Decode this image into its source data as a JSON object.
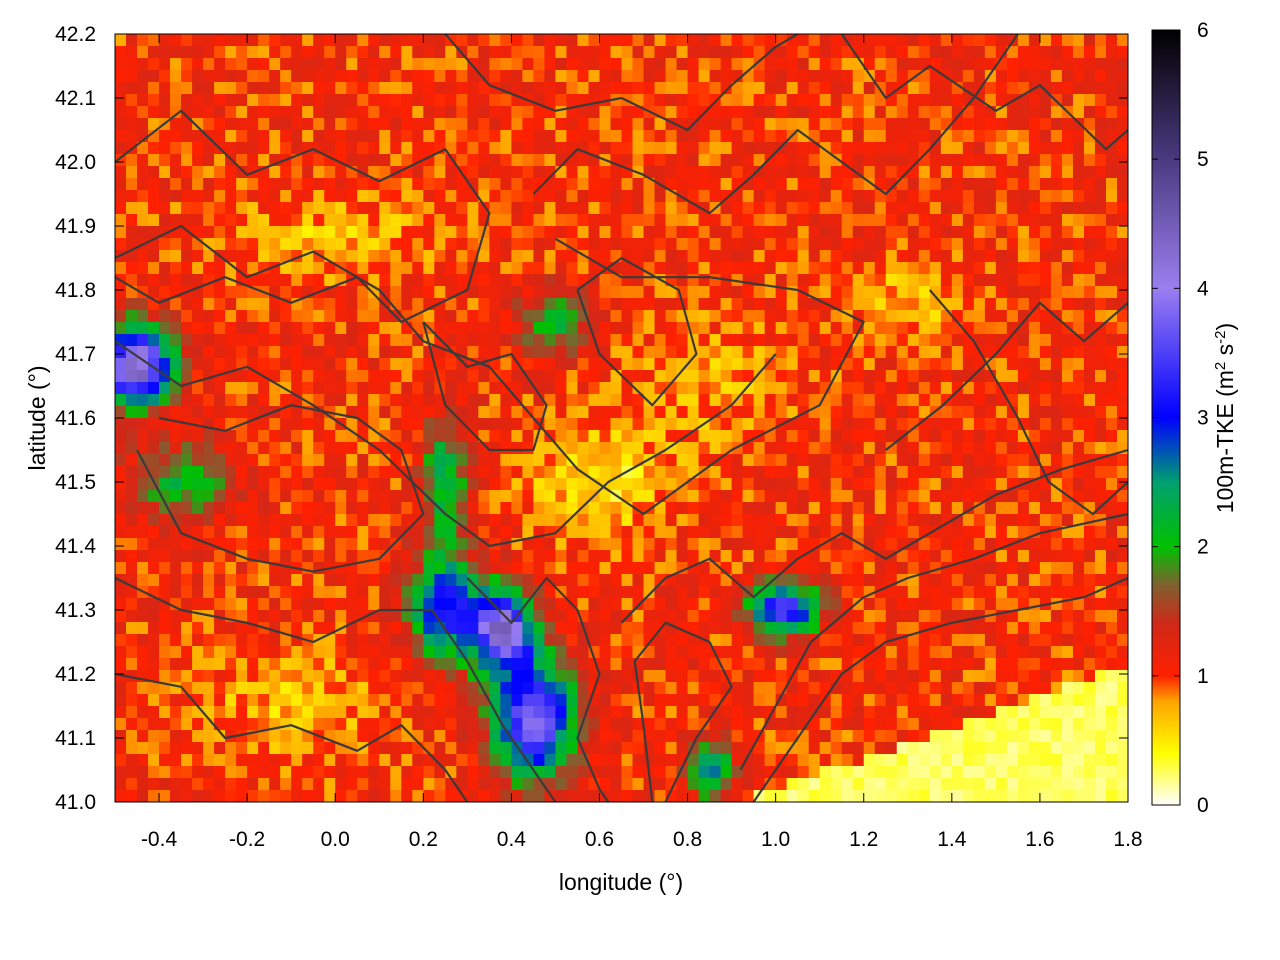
{
  "chart_data": {
    "type": "heatmap",
    "title": "",
    "xlabel": "longitude (°)",
    "ylabel": "latitude (°)",
    "xlim": [
      -0.5,
      1.8
    ],
    "ylim": [
      41.0,
      42.2
    ],
    "x_ticks": [
      "-0.4",
      "-0.2",
      "0.0",
      "0.2",
      "0.4",
      "0.6",
      "0.8",
      "1.0",
      "1.2",
      "1.4",
      "1.6",
      "1.8"
    ],
    "x_tick_values": [
      -0.4,
      -0.2,
      0.0,
      0.2,
      0.4,
      0.6,
      0.8,
      1.0,
      1.2,
      1.4,
      1.6,
      1.8
    ],
    "y_ticks": [
      "41.0",
      "41.1",
      "41.2",
      "41.3",
      "41.4",
      "41.5",
      "41.6",
      "41.7",
      "41.8",
      "41.9",
      "42.0",
      "42.1",
      "42.2"
    ],
    "y_tick_values": [
      41.0,
      41.1,
      41.2,
      41.3,
      41.4,
      41.5,
      41.6,
      41.7,
      41.8,
      41.9,
      42.0,
      42.1,
      42.2
    ],
    "colorbar": {
      "label_main": "100m-TKE (m",
      "label_sup1": "2",
      "label_mid": " s",
      "label_sup2": "-2",
      "label_end": ")",
      "range": [
        0,
        6
      ],
      "ticks": [
        "0",
        "1",
        "2",
        "3",
        "4",
        "5",
        "6"
      ],
      "tick_values": [
        0,
        1,
        2,
        3,
        4,
        5,
        6
      ],
      "stops": [
        {
          "value": 0.0,
          "color": "#ffffff"
        },
        {
          "value": 0.4,
          "color": "#ffff00"
        },
        {
          "value": 0.8,
          "color": "#ffa500"
        },
        {
          "value": 1.0,
          "color": "#ff2000"
        },
        {
          "value": 1.4,
          "color": "#d02818"
        },
        {
          "value": 1.7,
          "color": "#806030"
        },
        {
          "value": 2.0,
          "color": "#00c000"
        },
        {
          "value": 2.5,
          "color": "#00a070"
        },
        {
          "value": 3.0,
          "color": "#0000ff"
        },
        {
          "value": 4.0,
          "color": "#9b7fef"
        },
        {
          "value": 5.0,
          "color": "#4a3a80"
        },
        {
          "value": 6.0,
          "color": "#000000"
        }
      ]
    },
    "contour_color": "#3a3a3a",
    "grid": false,
    "legend": "none"
  }
}
